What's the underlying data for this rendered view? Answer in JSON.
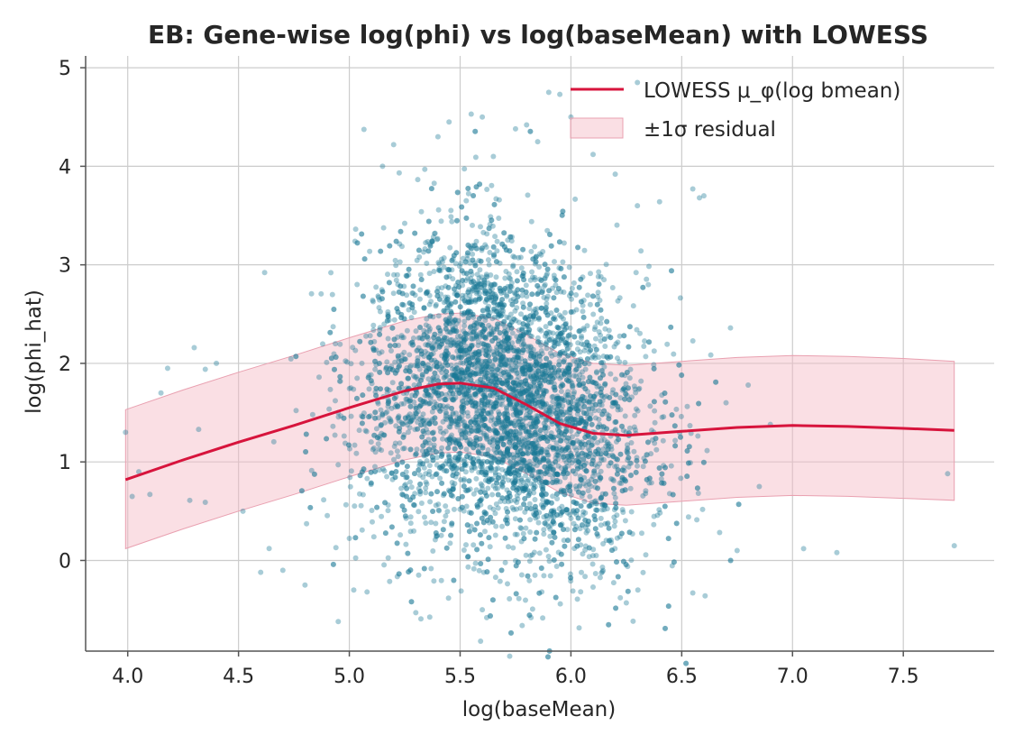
{
  "chart_data": {
    "type": "scatter",
    "title": "EB: Gene-wise log(phi) vs log(baseMean) with LOWESS",
    "xlabel": "log(baseMean)",
    "ylabel": "log(phi_hat)",
    "xlim": [
      3.81,
      7.91
    ],
    "ylim": [
      -0.92,
      5.12
    ],
    "xticks": [
      4.0,
      4.5,
      5.0,
      5.5,
      6.0,
      6.5,
      7.0,
      7.5
    ],
    "xtick_labels": [
      "4.0",
      "4.5",
      "5.0",
      "5.5",
      "6.0",
      "6.5",
      "7.0",
      "7.5"
    ],
    "yticks": [
      0,
      1,
      2,
      3,
      4,
      5
    ],
    "ytick_labels": [
      "0",
      "1",
      "2",
      "3",
      "4",
      "5"
    ],
    "grid": true,
    "legend_placement": "upper-right",
    "colors": {
      "points": "#1b7a96",
      "lowess": "#d7143c",
      "band": "#f4b8c4",
      "band_edge": "#e9a0b0",
      "grid": "#cccccc",
      "axis": "#555555"
    },
    "point_cloud": {
      "description_n_points": 10000,
      "center_x": 5.7,
      "spread_x": 0.32,
      "x_range_observed": [
        3.99,
        7.73
      ],
      "y_range_observed": [
        -0.6,
        4.85
      ]
    },
    "series": [
      {
        "name": "LOWESS μ_φ(log bmean)",
        "kind": "line",
        "x": [
          3.99,
          4.25,
          4.5,
          4.75,
          5.0,
          5.25,
          5.4,
          5.5,
          5.65,
          5.8,
          5.95,
          6.1,
          6.25,
          6.5,
          6.75,
          7.0,
          7.25,
          7.5,
          7.73
        ],
        "y": [
          0.82,
          1.02,
          1.2,
          1.37,
          1.55,
          1.72,
          1.79,
          1.8,
          1.75,
          1.58,
          1.39,
          1.29,
          1.27,
          1.31,
          1.35,
          1.37,
          1.36,
          1.34,
          1.32
        ]
      },
      {
        "name": "±1σ residual",
        "kind": "band",
        "x": [
          3.99,
          4.25,
          4.5,
          4.75,
          5.0,
          5.25,
          5.4,
          5.5,
          5.65,
          5.8,
          5.95,
          6.1,
          6.25,
          6.5,
          6.75,
          7.0,
          7.25,
          7.5,
          7.73
        ],
        "lower": [
          0.12,
          0.32,
          0.5,
          0.67,
          0.85,
          1.02,
          1.09,
          1.1,
          1.05,
          0.88,
          0.69,
          0.58,
          0.56,
          0.6,
          0.64,
          0.66,
          0.65,
          0.63,
          0.61
        ],
        "upper": [
          1.53,
          1.73,
          1.91,
          2.08,
          2.26,
          2.43,
          2.5,
          2.51,
          2.46,
          2.29,
          2.1,
          2.0,
          1.98,
          2.02,
          2.06,
          2.08,
          2.07,
          2.05,
          2.02
        ]
      }
    ],
    "outlier_points": [
      [
        3.99,
        1.3
      ],
      [
        4.02,
        0.65
      ],
      [
        4.05,
        0.9
      ],
      [
        4.1,
        0.67
      ],
      [
        4.15,
        1.7
      ],
      [
        4.18,
        1.95
      ],
      [
        4.3,
        2.16
      ],
      [
        4.32,
        1.33
      ],
      [
        4.35,
        1.94
      ],
      [
        4.4,
        2.0
      ],
      [
        4.28,
        0.61
      ],
      [
        4.35,
        0.59
      ],
      [
        4.52,
        0.5
      ],
      [
        4.6,
        -0.12
      ],
      [
        4.7,
        -0.1
      ],
      [
        4.8,
        -0.25
      ],
      [
        4.95,
        -0.62
      ],
      [
        5.02,
        -0.3
      ],
      [
        5.08,
        -0.32
      ],
      [
        5.3,
        -0.53
      ],
      [
        5.6,
        -0.5
      ],
      [
        5.62,
        -0.58
      ],
      [
        5.78,
        -0.66
      ],
      [
        5.82,
        -0.58
      ],
      [
        6.1,
        -0.27
      ],
      [
        6.25,
        -0.43
      ],
      [
        6.55,
        -0.33
      ],
      [
        6.75,
        0.1
      ],
      [
        7.05,
        0.12
      ],
      [
        7.2,
        0.08
      ],
      [
        7.73,
        0.15
      ],
      [
        7.7,
        0.88
      ],
      [
        6.9,
        1.38
      ],
      [
        6.85,
        0.75
      ],
      [
        6.8,
        1.78
      ],
      [
        6.7,
        1.6
      ],
      [
        6.72,
        2.36
      ],
      [
        6.55,
        3.77
      ],
      [
        6.58,
        3.68
      ],
      [
        6.6,
        3.7
      ],
      [
        6.4,
        3.64
      ],
      [
        6.3,
        3.6
      ],
      [
        6.2,
        3.92
      ],
      [
        6.1,
        4.12
      ],
      [
        6.0,
        4.5
      ],
      [
        5.95,
        4.73
      ],
      [
        5.9,
        4.75
      ],
      [
        5.8,
        4.42
      ],
      [
        5.75,
        4.38
      ],
      [
        5.6,
        4.5
      ],
      [
        5.55,
        4.53
      ],
      [
        5.45,
        4.45
      ],
      [
        5.4,
        4.3
      ],
      [
        5.2,
        4.22
      ],
      [
        5.15,
        4.0
      ],
      [
        6.3,
        4.85
      ],
      [
        5.85,
        4.25
      ],
      [
        5.65,
        4.1
      ]
    ]
  }
}
